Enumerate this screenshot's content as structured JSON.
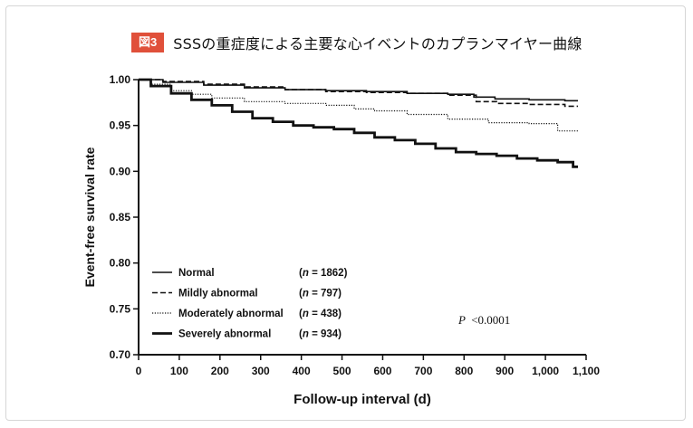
{
  "figure": {
    "badge": "図3",
    "title": "SSSの重症度による主要な心イベントのカプランマイヤー曲線"
  },
  "chart_data": {
    "type": "line",
    "title": "SSSの重症度による主要な心イベントのカプランマイヤー曲線",
    "xlabel": "Follow-up interval (d)",
    "ylabel": "Event-free survival rate",
    "xlim": [
      0,
      1100
    ],
    "ylim": [
      0.7,
      1.0
    ],
    "xticks": [
      "0",
      "100",
      "200",
      "300",
      "400",
      "500",
      "600",
      "700",
      "800",
      "900",
      "1,000",
      "1,100"
    ],
    "yticks": [
      "0.70",
      "0.75",
      "0.80",
      "0.85",
      "0.90",
      "0.95",
      "1.00"
    ],
    "annotation": {
      "label": "P",
      "text": "<0.0001"
    },
    "legend_position": "bottom-left",
    "series": [
      {
        "name": "Normal",
        "n_label": "(n = 1862)",
        "n_prefix": "(",
        "n_var": "n",
        "n_value": " = 1862)",
        "style": "solid",
        "x": [
          0,
          100,
          200,
          300,
          400,
          500,
          600,
          700,
          800,
          840,
          900,
          1000,
          1080
        ],
        "y": [
          1.0,
          0.997,
          0.994,
          0.991,
          0.989,
          0.988,
          0.987,
          0.985,
          0.984,
          0.981,
          0.979,
          0.978,
          0.977
        ]
      },
      {
        "name": "Mildly abnormal",
        "n_label": "(n = 797)",
        "n_prefix": "(",
        "n_var": "n",
        "n_value": " = 797)",
        "style": "dashed",
        "x": [
          0,
          100,
          200,
          300,
          400,
          500,
          600,
          700,
          800,
          850,
          900,
          1000,
          1080
        ],
        "y": [
          1.0,
          0.998,
          0.995,
          0.992,
          0.989,
          0.987,
          0.986,
          0.985,
          0.983,
          0.976,
          0.974,
          0.973,
          0.971
        ]
      },
      {
        "name": "Moderately abnormal",
        "n_label": "(n = 438)",
        "n_prefix": "(",
        "n_var": "n",
        "n_value": " = 438)",
        "style": "dotted",
        "x": [
          0,
          50,
          100,
          150,
          200,
          300,
          400,
          500,
          550,
          600,
          700,
          800,
          900,
          1000,
          1050,
          1080
        ],
        "y": [
          1.0,
          0.995,
          0.988,
          0.984,
          0.98,
          0.976,
          0.974,
          0.972,
          0.968,
          0.966,
          0.962,
          0.957,
          0.953,
          0.952,
          0.944,
          0.944
        ]
      },
      {
        "name": "Severely abnormal",
        "n_label": "(n = 934)",
        "n_prefix": "(",
        "n_var": "n",
        "n_value": " = 934)",
        "style": "bold",
        "x": [
          0,
          50,
          100,
          150,
          200,
          250,
          300,
          350,
          400,
          450,
          500,
          550,
          600,
          650,
          700,
          750,
          800,
          850,
          900,
          950,
          1000,
          1050,
          1080
        ],
        "y": [
          1.0,
          0.993,
          0.985,
          0.978,
          0.972,
          0.965,
          0.958,
          0.954,
          0.95,
          0.948,
          0.946,
          0.942,
          0.937,
          0.934,
          0.93,
          0.925,
          0.921,
          0.919,
          0.917,
          0.914,
          0.912,
          0.91,
          0.905
        ]
      }
    ]
  }
}
